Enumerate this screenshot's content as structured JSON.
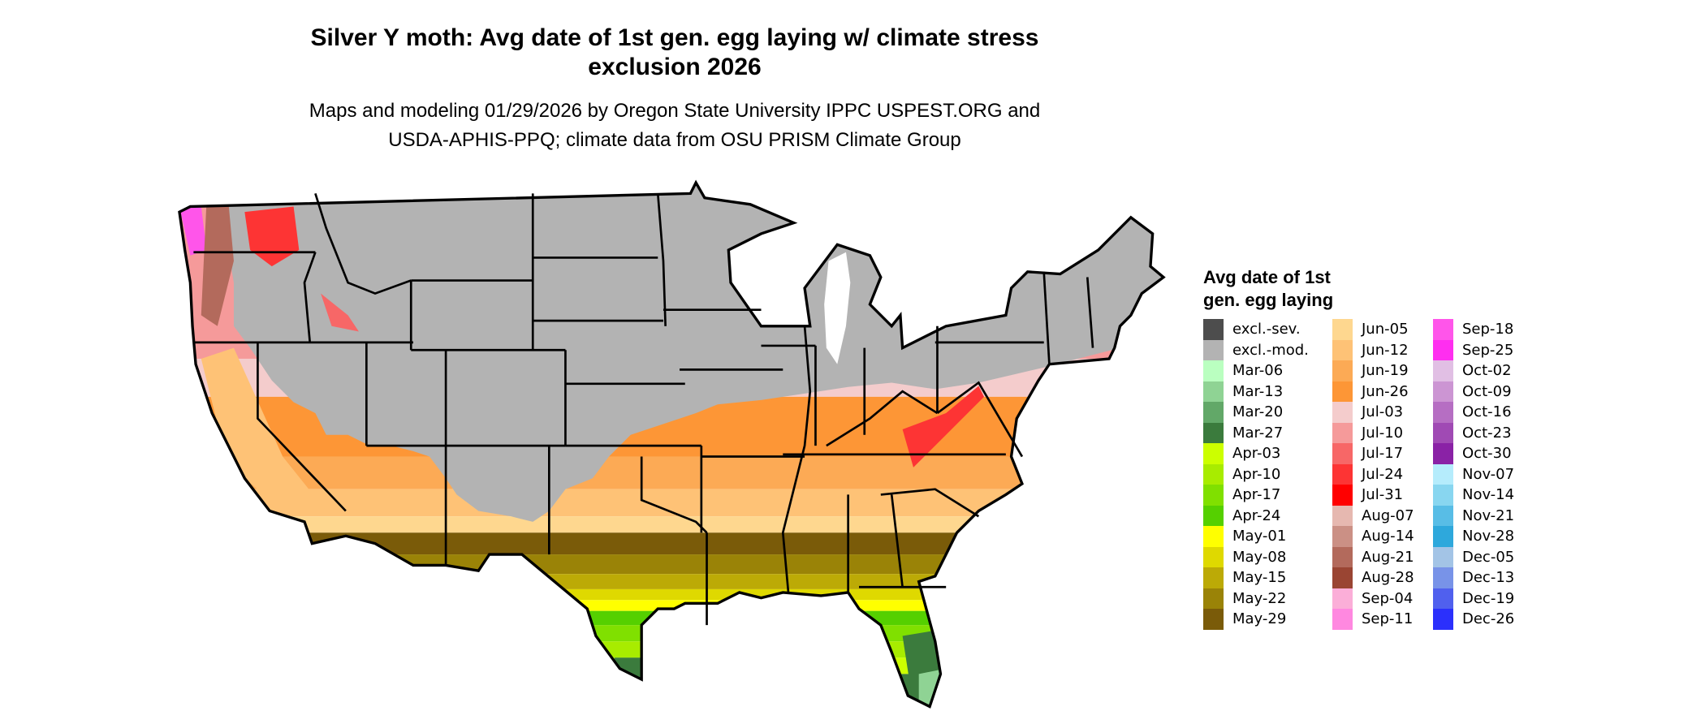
{
  "title": {
    "line1": "Silver Y moth: Avg date of 1st gen. egg laying w/ climate stress",
    "line2": "exclusion 2026"
  },
  "subtitle": {
    "line1": "Maps and modeling 01/29/2026 by Oregon State University IPPC USPEST.ORG and",
    "line2": "USDA-APHIS-PPQ; climate data from OSU PRISM Climate Group"
  },
  "legend": {
    "title_line1": "Avg date of 1st",
    "title_line2": "gen. egg laying",
    "columns": [
      [
        {
          "label": "excl.-sev.",
          "color": "#4d4d4d"
        },
        {
          "label": "excl.-mod.",
          "color": "#b3b3b3"
        },
        {
          "label": "Mar-06",
          "color": "#baffc0"
        },
        {
          "label": "Mar-13",
          "color": "#8fd394"
        },
        {
          "label": "Mar-20",
          "color": "#62a868"
        },
        {
          "label": "Mar-27",
          "color": "#3b7b3d"
        },
        {
          "label": "Apr-03",
          "color": "#ccff00"
        },
        {
          "label": "Apr-10",
          "color": "#a8ec00"
        },
        {
          "label": "Apr-17",
          "color": "#80e000"
        },
        {
          "label": "Apr-24",
          "color": "#55d000"
        },
        {
          "label": "May-01",
          "color": "#ffff00"
        },
        {
          "label": "May-08",
          "color": "#dfd900"
        },
        {
          "label": "May-15",
          "color": "#bcaa06"
        },
        {
          "label": "May-22",
          "color": "#9a8307"
        },
        {
          "label": "May-29",
          "color": "#7a5b09"
        }
      ],
      [
        {
          "label": "Jun-05",
          "color": "#fed78f"
        },
        {
          "label": "Jun-12",
          "color": "#fec276"
        },
        {
          "label": "Jun-19",
          "color": "#fcaa55"
        },
        {
          "label": "Jun-26",
          "color": "#fd9636"
        },
        {
          "label": "Jul-03",
          "color": "#f4cccc"
        },
        {
          "label": "Jul-10",
          "color": "#f59a9a"
        },
        {
          "label": "Jul-17",
          "color": "#f76767"
        },
        {
          "label": "Jul-24",
          "color": "#fd3434"
        },
        {
          "label": "Jul-31",
          "color": "#ff0000"
        },
        {
          "label": "Aug-07",
          "color": "#e6b8b0"
        },
        {
          "label": "Aug-14",
          "color": "#cb9085"
        },
        {
          "label": "Aug-21",
          "color": "#b36a5c"
        },
        {
          "label": "Aug-28",
          "color": "#9a4533"
        },
        {
          "label": "Sep-04",
          "color": "#fbaed8"
        },
        {
          "label": "Sep-11",
          "color": "#ff88e0"
        }
      ],
      [
        {
          "label": "Sep-18",
          "color": "#ff55ea"
        },
        {
          "label": "Sep-25",
          "color": "#ff2ef0"
        },
        {
          "label": "Oct-02",
          "color": "#e1bfe4"
        },
        {
          "label": "Oct-09",
          "color": "#cc95d3"
        },
        {
          "label": "Oct-16",
          "color": "#b66ec3"
        },
        {
          "label": "Oct-23",
          "color": "#a04ab4"
        },
        {
          "label": "Oct-30",
          "color": "#8a22a6"
        },
        {
          "label": "Nov-07",
          "color": "#b5ecfc"
        },
        {
          "label": "Nov-14",
          "color": "#88d6f0"
        },
        {
          "label": "Nov-21",
          "color": "#58bde6"
        },
        {
          "label": "Nov-28",
          "color": "#2ea8dc"
        },
        {
          "label": "Dec-05",
          "color": "#a3c4e6"
        },
        {
          "label": "Dec-13",
          "color": "#7893e8"
        },
        {
          "label": "Dec-19",
          "color": "#5060ee"
        },
        {
          "label": "Dec-26",
          "color": "#2b30fc"
        }
      ]
    ]
  }
}
